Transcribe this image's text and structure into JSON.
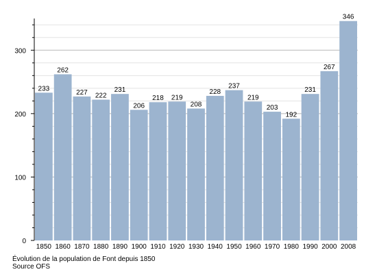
{
  "chart_data": {
    "type": "bar",
    "categories": [
      "1850",
      "1860",
      "1870",
      "1880",
      "1890",
      "1900",
      "1910",
      "1920",
      "1930",
      "1940",
      "1950",
      "1960",
      "1970",
      "1980",
      "1990",
      "2000",
      "2008"
    ],
    "values": [
      233,
      262,
      227,
      222,
      231,
      206,
      218,
      219,
      208,
      228,
      237,
      219,
      203,
      192,
      231,
      267,
      346
    ],
    "ylim": [
      0,
      350
    ],
    "yticks": [
      0,
      100,
      200,
      300
    ],
    "grid": true,
    "bar_color": "#9cb4cf",
    "grid_color": "#cccccc",
    "title": "",
    "xlabel": "",
    "ylabel": ""
  },
  "caption": {
    "line1": "Évolution de la population de Font depuis 1850",
    "line2": "Source OFS"
  }
}
